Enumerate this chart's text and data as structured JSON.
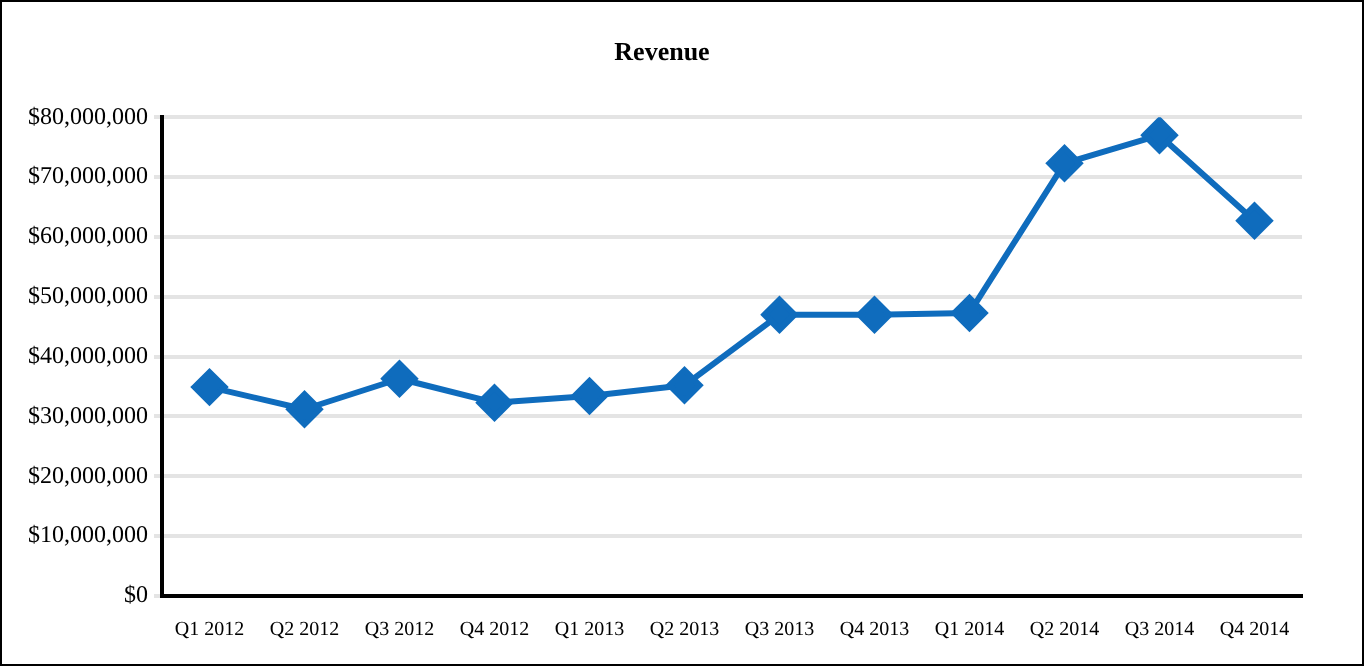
{
  "chart_data": {
    "type": "line",
    "title": "Revenue",
    "categories": [
      "Q1 2012",
      "Q2 2012",
      "Q3 2012",
      "Q4 2012",
      "Q1 2013",
      "Q2 2013",
      "Q3 2013",
      "Q4 2013",
      "Q1 2014",
      "Q2 2014",
      "Q3 2014",
      "Q4 2014"
    ],
    "series": [
      {
        "color": "#0f6cbd",
        "values": [
          34900000,
          31200000,
          36300000,
          32300000,
          33400000,
          35200000,
          47000000,
          47000000,
          47300000,
          72300000,
          77000000,
          62700000
        ]
      }
    ],
    "ylim": [
      0,
      80000000
    ],
    "yticks": [
      {
        "value": 0,
        "label": "$0"
      },
      {
        "value": 10000000,
        "label": "$10,000,000"
      },
      {
        "value": 20000000,
        "label": "$20,000,000"
      },
      {
        "value": 30000000,
        "label": "$30,000,000"
      },
      {
        "value": 40000000,
        "label": "$40,000,000"
      },
      {
        "value": 50000000,
        "label": "$50,000,000"
      },
      {
        "value": 60000000,
        "label": "$60,000,000"
      },
      {
        "value": 70000000,
        "label": "$70,000,000"
      },
      {
        "value": 80000000,
        "label": "$80,000,000"
      }
    ],
    "grid": "y",
    "legend": false,
    "marker": "diamond",
    "line_style": "solid"
  }
}
